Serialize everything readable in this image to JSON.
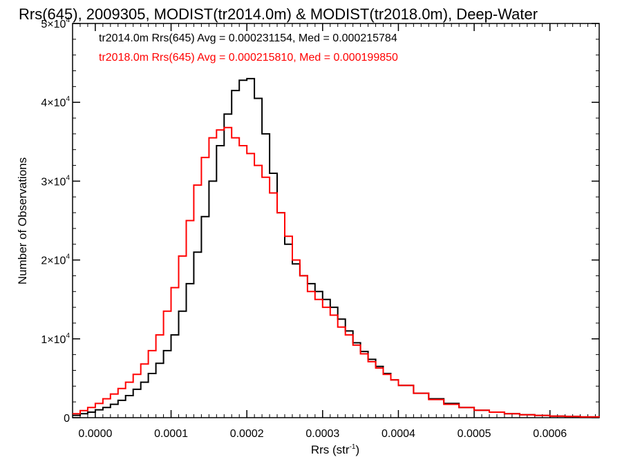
{
  "chart_data": {
    "type": "line",
    "title": "Rrs(645), 2009305, MODIST(tr2014.0m) & MODIST(tr2018.0m), Deep-Water",
    "xlabel": "Rrs (str",
    "xlabel_sup": "-1",
    "xlabel_end": ")",
    "ylabel": "Number of Observations",
    "xlim": [
      -3e-05,
      0.000665
    ],
    "ylim": [
      0,
      50000
    ],
    "x_ticks": [
      0,
      0.0001,
      0.0002,
      0.0003,
      0.0004,
      0.0005,
      0.0006
    ],
    "x_tick_labels": [
      "0.0000",
      "0.0001",
      "0.0002",
      "0.0003",
      "0.0004",
      "0.0005",
      "0.0006"
    ],
    "y_ticks": [
      0,
      10000,
      20000,
      30000,
      40000,
      50000
    ],
    "y_tick_labels": [
      {
        "base": "0",
        "exp": ""
      },
      {
        "base": "1×10",
        "exp": "4"
      },
      {
        "base": "2×10",
        "exp": "4"
      },
      {
        "base": "3×10",
        "exp": "4"
      },
      {
        "base": "4×10",
        "exp": "4"
      },
      {
        "base": "5×10",
        "exp": "4"
      }
    ],
    "legend": [
      {
        "text": "tr2014.0m Rrs(645) Avg = 0.000231154, Med = 0.000215784",
        "color": "#000000"
      },
      {
        "text": "tr2018.0m Rrs(645) Avg = 0.000215810, Med = 0.000199850",
        "color": "#ff0000"
      }
    ],
    "series": [
      {
        "color": "#000000",
        "x": [
          -3e-05,
          -2e-05,
          -1e-05,
          0,
          1e-05,
          2e-05,
          3e-05,
          4e-05,
          5e-05,
          6e-05,
          7e-05,
          8e-05,
          9e-05,
          0.0001,
          0.00011,
          0.00012,
          0.00013,
          0.00014,
          0.00015,
          0.00016,
          0.00017,
          0.00018,
          0.00019,
          0.0002,
          0.00021,
          0.00022,
          0.00023,
          0.00024,
          0.00025,
          0.00026,
          0.00027,
          0.00028,
          0.00029,
          0.0003,
          0.00031,
          0.00032,
          0.00033,
          0.00034,
          0.00035,
          0.00036,
          0.00037,
          0.00038,
          0.00039,
          0.0004,
          0.00042,
          0.00044,
          0.00046,
          0.00048,
          0.0005,
          0.00052,
          0.00054,
          0.00056,
          0.00058,
          0.0006,
          0.00062,
          0.00064,
          0.000665
        ],
        "y": [
          300,
          500,
          700,
          1000,
          1300,
          1700,
          2200,
          2800,
          3600,
          4500,
          5600,
          6900,
          8500,
          10500,
          13500,
          17000,
          21000,
          25500,
          30000,
          34500,
          38500,
          41500,
          42800,
          43000,
          40500,
          36000,
          31000,
          26000,
          22000,
          19500,
          18000,
          17000,
          16000,
          15000,
          14000,
          12500,
          11000,
          9500,
          8400,
          7400,
          6500,
          5600,
          4800,
          4100,
          3100,
          2400,
          1800,
          1300,
          950,
          700,
          500,
          380,
          280,
          200,
          150,
          100,
          70
        ]
      },
      {
        "color": "#ff0000",
        "x": [
          -3e-05,
          -2e-05,
          -1e-05,
          0,
          1e-05,
          2e-05,
          3e-05,
          4e-05,
          5e-05,
          6e-05,
          7e-05,
          8e-05,
          9e-05,
          0.0001,
          0.00011,
          0.00012,
          0.00013,
          0.00014,
          0.00015,
          0.00016,
          0.00017,
          0.00018,
          0.00019,
          0.0002,
          0.00021,
          0.00022,
          0.00023,
          0.00024,
          0.00025,
          0.00026,
          0.00027,
          0.00028,
          0.00029,
          0.0003,
          0.00031,
          0.00032,
          0.00033,
          0.00034,
          0.00035,
          0.00036,
          0.00037,
          0.00038,
          0.00039,
          0.0004,
          0.00042,
          0.00044,
          0.00046,
          0.00048,
          0.0005,
          0.00052,
          0.00054,
          0.00056,
          0.00058,
          0.0006,
          0.00062,
          0.00064,
          0.000665
        ],
        "y": [
          500,
          900,
          1300,
          1800,
          2400,
          3000,
          3700,
          4500,
          5500,
          6800,
          8500,
          10500,
          13500,
          16500,
          20500,
          25000,
          29500,
          33000,
          35500,
          36500,
          36800,
          35500,
          34500,
          33500,
          32000,
          30500,
          28500,
          26000,
          23000,
          20000,
          18000,
          16000,
          15000,
          14000,
          13000,
          11500,
          10500,
          9200,
          8100,
          7100,
          6300,
          5500,
          4800,
          4100,
          3100,
          2300,
          1700,
          1300,
          950,
          700,
          500,
          380,
          280,
          200,
          150,
          100,
          70
        ]
      }
    ]
  }
}
